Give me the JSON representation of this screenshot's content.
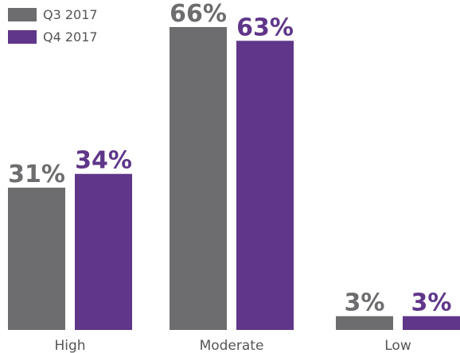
{
  "chart_data": {
    "type": "bar",
    "title": "",
    "xlabel": "",
    "ylabel": "",
    "categories": [
      "High",
      "Moderate",
      "Low"
    ],
    "series": [
      {
        "name": "Q3 2017",
        "color": "#6d6d70",
        "values": [
          31,
          66,
          3
        ],
        "labels": [
          "31%",
          "66%",
          "3%"
        ]
      },
      {
        "name": "Q4 2017",
        "color": "#5f3689",
        "values": [
          34,
          63,
          3
        ],
        "labels": [
          "34%",
          "63%",
          "3%"
        ]
      }
    ],
    "ylim": [
      0,
      66
    ],
    "grid": false,
    "legend": "top-left"
  }
}
